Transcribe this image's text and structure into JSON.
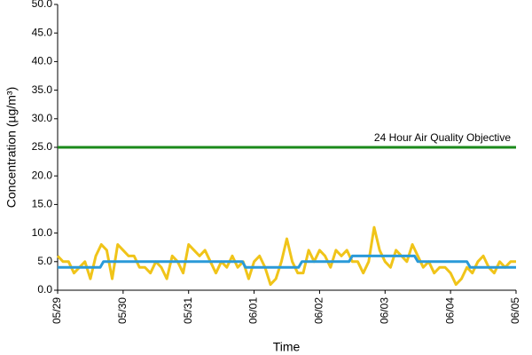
{
  "chart_data": {
    "type": "line",
    "y_label": "Concentration (µg/m³)",
    "x_label": "Time",
    "annotation": "24 Hour Air Quality Objective",
    "xlim": [
      0,
      7
    ],
    "xticks": [
      {
        "value": 0,
        "label": "05/29"
      },
      {
        "value": 1,
        "label": "05/30"
      },
      {
        "value": 2,
        "label": "05/31"
      },
      {
        "value": 3,
        "label": "06/01"
      },
      {
        "value": 4,
        "label": "06/02"
      },
      {
        "value": 5,
        "label": "06/03"
      },
      {
        "value": 6,
        "label": "06/04"
      },
      {
        "value": 7,
        "label": "06/05"
      }
    ],
    "ylim": [
      0,
      50
    ],
    "yticks": [
      {
        "value": 0,
        "label": "0.0"
      },
      {
        "value": 5,
        "label": "5.0"
      },
      {
        "value": 10,
        "label": "10.0"
      },
      {
        "value": 15,
        "label": "15.0"
      },
      {
        "value": 20,
        "label": "20.0"
      },
      {
        "value": 25,
        "label": "25.0"
      },
      {
        "value": 30,
        "label": "30.0"
      },
      {
        "value": 35,
        "label": "35.0"
      },
      {
        "value": 40,
        "label": "40.0"
      },
      {
        "value": 45,
        "label": "45.0"
      },
      {
        "value": 50,
        "label": "50.0"
      }
    ],
    "grid": false,
    "series": [
      {
        "color": "#1b8a1b",
        "x": [
          0,
          7
        ],
        "values": [
          25,
          25
        ]
      },
      {
        "color": "#f0c419",
        "x": [
          0,
          0.083,
          0.167,
          0.25,
          0.333,
          0.417,
          0.5,
          0.583,
          0.667,
          0.75,
          0.833,
          0.917,
          1,
          1.083,
          1.167,
          1.25,
          1.333,
          1.417,
          1.5,
          1.583,
          1.667,
          1.75,
          1.833,
          1.917,
          2,
          2.083,
          2.167,
          2.25,
          2.333,
          2.417,
          2.5,
          2.583,
          2.667,
          2.75,
          2.833,
          2.917,
          3,
          3.083,
          3.167,
          3.25,
          3.333,
          3.417,
          3.5,
          3.583,
          3.667,
          3.75,
          3.833,
          3.917,
          4,
          4.083,
          4.167,
          4.25,
          4.333,
          4.417,
          4.5,
          4.583,
          4.667,
          4.75,
          4.833,
          4.917,
          5,
          5.083,
          5.167,
          5.25,
          5.333,
          5.417,
          5.5,
          5.583,
          5.667,
          5.75,
          5.833,
          5.917,
          6,
          6.083,
          6.167,
          6.25,
          6.333,
          6.417,
          6.5,
          6.583,
          6.667,
          6.75,
          6.833,
          6.917,
          7
        ],
        "values": [
          6,
          5,
          5,
          3,
          4,
          5,
          2,
          6,
          8,
          7,
          2,
          8,
          7,
          6,
          6,
          4,
          4,
          3,
          5,
          4,
          2,
          6,
          5,
          3,
          8,
          7,
          6,
          7,
          5,
          3,
          5,
          4,
          6,
          4,
          5,
          2,
          5,
          6,
          4,
          1,
          2,
          5,
          9,
          5,
          3,
          3,
          7,
          5,
          7,
          6,
          4,
          7,
          6,
          7,
          5,
          5,
          3,
          5,
          11,
          7,
          5,
          4,
          7,
          6,
          5,
          8,
          6,
          4,
          5,
          3,
          4,
          4,
          3,
          1,
          2,
          4,
          3,
          5,
          6,
          4,
          3,
          5,
          4,
          5,
          5
        ]
      },
      {
        "color": "#2a9ad8",
        "x": [
          0,
          0.65,
          0.7,
          2.82,
          2.87,
          3.68,
          3.73,
          4.45,
          4.5,
          5.45,
          5.5,
          6.25,
          6.3,
          7
        ],
        "values": [
          4,
          4,
          5,
          5,
          4,
          4,
          5,
          5,
          6,
          6,
          5,
          5,
          4,
          4
        ]
      }
    ]
  }
}
